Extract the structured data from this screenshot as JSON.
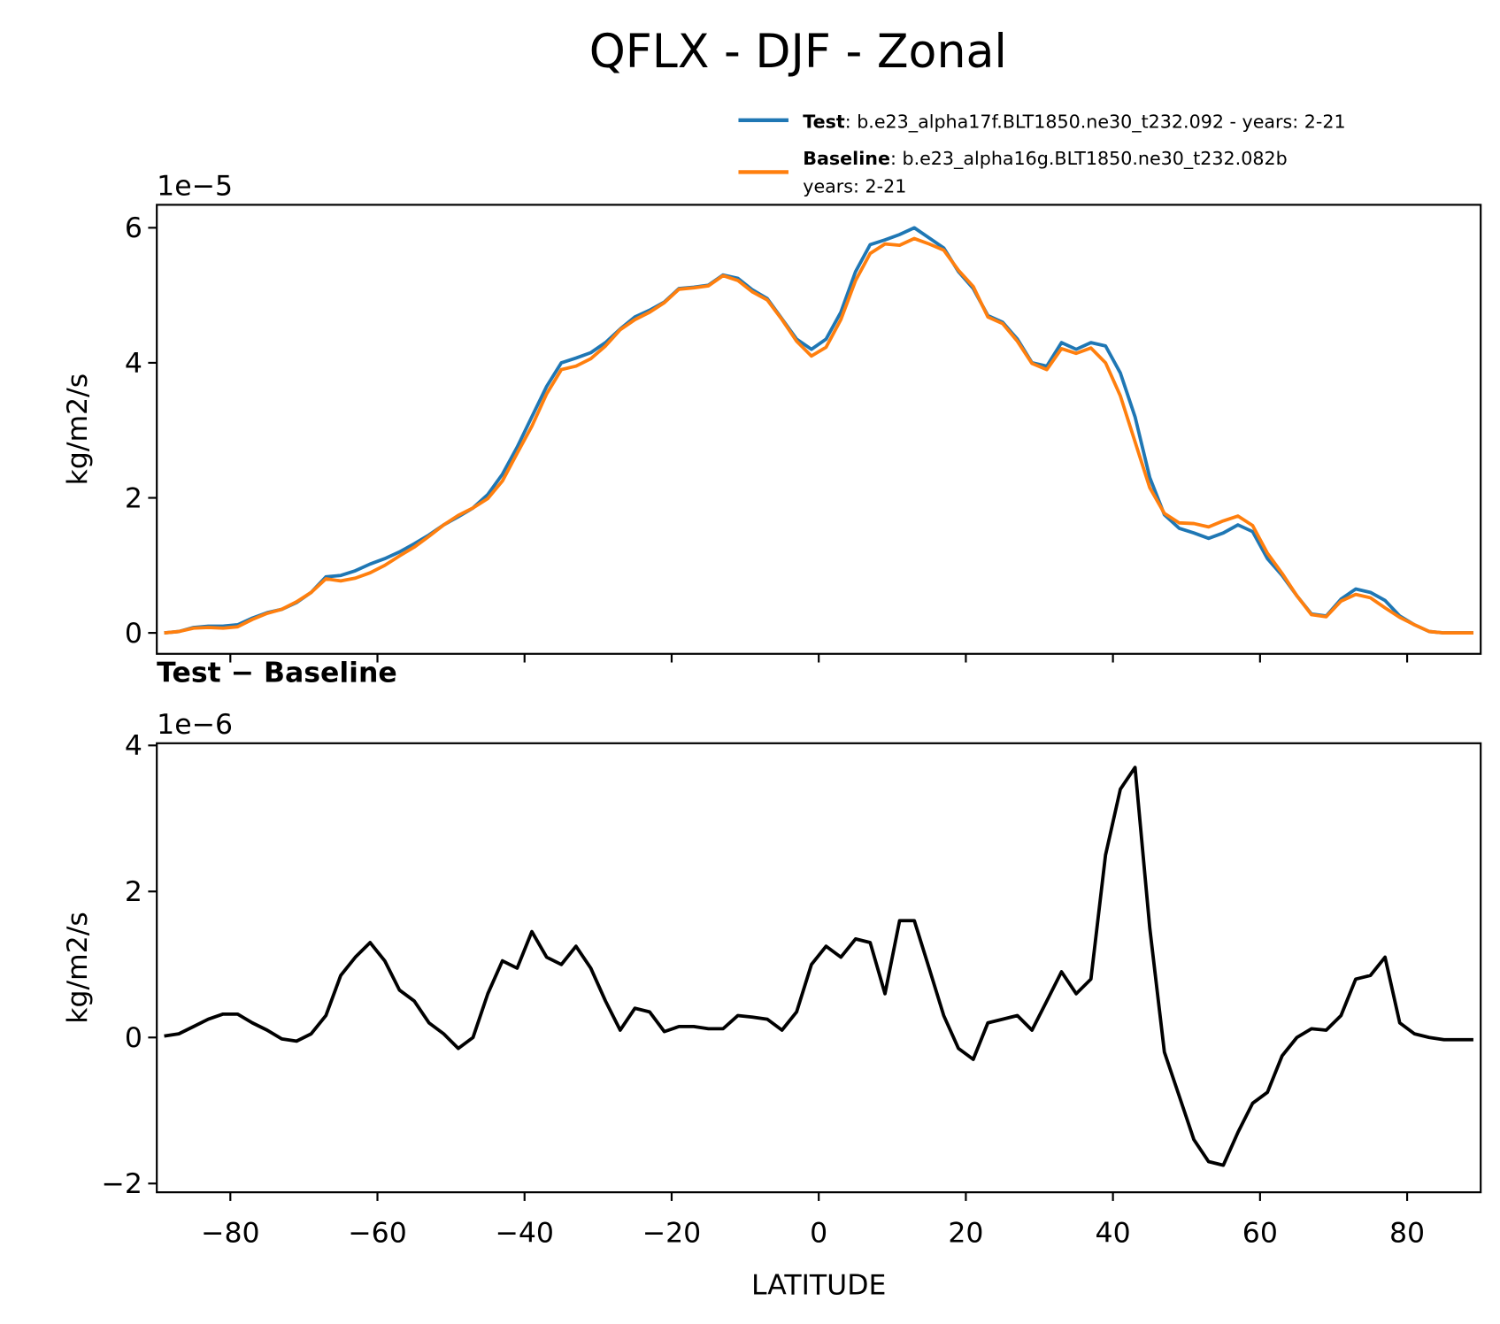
{
  "title": "QFLX - DJF - Zonal",
  "chart_data": [
    {
      "type": "line",
      "x": [
        -89,
        -87,
        -85,
        -83,
        -81,
        -79,
        -77,
        -75,
        -73,
        -71,
        -69,
        -67,
        -65,
        -63,
        -61,
        -59,
        -57,
        -55,
        -53,
        -51,
        -49,
        -47,
        -45,
        -43,
        -41,
        -39,
        -37,
        -35,
        -33,
        -31,
        -29,
        -27,
        -25,
        -23,
        -21,
        -19,
        -17,
        -15,
        -13,
        -11,
        -9,
        -7,
        -5,
        -3,
        -1,
        1,
        3,
        5,
        7,
        9,
        11,
        13,
        15,
        17,
        19,
        21,
        23,
        25,
        27,
        29,
        31,
        33,
        35,
        37,
        39,
        41,
        43,
        45,
        47,
        49,
        51,
        53,
        55,
        57,
        59,
        61,
        63,
        65,
        67,
        69,
        71,
        73,
        75,
        77,
        79,
        81,
        83,
        85,
        87,
        89
      ],
      "series": [
        {
          "name": "Test",
          "description_lines": [
            ": b.e23_alpha17f.BLT1850.ne30_t232.092 - years: 2-21"
          ],
          "color": "#1f77b4",
          "values": [
            0,
            0.02,
            0.08,
            0.1,
            0.1,
            0.12,
            0.22,
            0.3,
            0.35,
            0.45,
            0.6,
            0.83,
            0.85,
            0.92,
            1.02,
            1.1,
            1.2,
            1.32,
            1.45,
            1.6,
            1.72,
            1.85,
            2.05,
            2.35,
            2.75,
            3.2,
            3.65,
            4.0,
            4.07,
            4.15,
            4.3,
            4.5,
            4.68,
            4.78,
            4.9,
            5.1,
            5.12,
            5.15,
            5.3,
            5.25,
            5.08,
            4.95,
            4.65,
            4.35,
            4.2,
            4.35,
            4.75,
            5.35,
            5.75,
            5.82,
            5.9,
            6.0,
            5.85,
            5.7,
            5.35,
            5.1,
            4.7,
            4.6,
            4.35,
            4.0,
            3.95,
            4.3,
            4.2,
            4.3,
            4.25,
            3.85,
            3.2,
            2.3,
            1.75,
            1.55,
            1.48,
            1.4,
            1.48,
            1.6,
            1.5,
            1.1,
            0.85,
            0.55,
            0.28,
            0.25,
            0.5,
            0.65,
            0.6,
            0.48,
            0.25,
            0.12,
            0.02,
            0,
            0,
            0
          ]
        },
        {
          "name": "Baseline",
          "description_lines": [
            ": b.e23_alpha16g.BLT1850.ne30_t232.082b",
            "years: 2-21"
          ],
          "color": "#ff7f0e",
          "values": [
            0,
            0.02,
            0.07,
            0.08,
            0.07,
            0.09,
            0.2,
            0.29,
            0.35,
            0.46,
            0.6,
            0.8,
            0.77,
            0.81,
            0.89,
            1.0,
            1.14,
            1.27,
            1.43,
            1.6,
            1.74,
            1.85,
            1.99,
            2.25,
            2.66,
            3.06,
            3.54,
            3.9,
            3.95,
            4.06,
            4.25,
            4.49,
            4.64,
            4.75,
            4.89,
            5.09,
            5.11,
            5.14,
            5.29,
            5.22,
            5.05,
            4.93,
            4.64,
            4.32,
            4.1,
            4.23,
            4.64,
            5.22,
            5.62,
            5.76,
            5.74,
            5.84,
            5.76,
            5.67,
            5.37,
            5.13,
            4.68,
            4.58,
            4.32,
            3.99,
            3.9,
            4.21,
            4.14,
            4.22,
            4.0,
            3.51,
            2.83,
            2.15,
            1.77,
            1.63,
            1.62,
            1.57,
            1.66,
            1.73,
            1.59,
            1.18,
            0.88,
            0.55,
            0.27,
            0.24,
            0.47,
            0.57,
            0.52,
            0.37,
            0.23,
            0.12,
            0.02,
            0,
            0,
            0
          ]
        }
      ],
      "ylabel": "kg/m2/s",
      "offset_text": "1e−5",
      "xlim": [
        -90,
        90
      ],
      "xticks": [
        -80,
        -60,
        -40,
        -20,
        0,
        20,
        40,
        60,
        80
      ],
      "ylim": [
        -0.31,
        6.34
      ],
      "yticks": [
        0,
        2,
        4,
        6
      ]
    },
    {
      "type": "line",
      "title": "Test − Baseline",
      "x": [
        -89,
        -87,
        -85,
        -83,
        -81,
        -79,
        -77,
        -75,
        -73,
        -71,
        -69,
        -67,
        -65,
        -63,
        -61,
        -59,
        -57,
        -55,
        -53,
        -51,
        -49,
        -47,
        -45,
        -43,
        -41,
        -39,
        -37,
        -35,
        -33,
        -31,
        -29,
        -27,
        -25,
        -23,
        -21,
        -19,
        -17,
        -15,
        -13,
        -11,
        -9,
        -7,
        -5,
        -3,
        -1,
        1,
        3,
        5,
        7,
        9,
        11,
        13,
        15,
        17,
        19,
        21,
        23,
        25,
        27,
        29,
        31,
        33,
        35,
        37,
        39,
        41,
        43,
        45,
        47,
        49,
        51,
        53,
        55,
        57,
        59,
        61,
        63,
        65,
        67,
        69,
        71,
        73,
        75,
        77,
        79,
        81,
        83,
        85,
        87,
        89
      ],
      "color": "#000000",
      "values": [
        0.02,
        0.05,
        0.15,
        0.25,
        0.32,
        0.32,
        0.2,
        0.1,
        -0.02,
        -0.05,
        0.05,
        0.3,
        0.85,
        1.1,
        1.3,
        1.05,
        0.65,
        0.5,
        0.2,
        0.05,
        -0.15,
        0.0,
        0.6,
        1.05,
        0.95,
        1.45,
        1.1,
        1.0,
        1.25,
        0.95,
        0.5,
        0.1,
        0.4,
        0.35,
        0.08,
        0.15,
        0.15,
        0.12,
        0.12,
        0.3,
        0.28,
        0.25,
        0.1,
        0.35,
        1.0,
        1.25,
        1.1,
        1.35,
        1.3,
        0.6,
        1.6,
        1.6,
        0.95,
        0.3,
        -0.15,
        -0.3,
        0.2,
        0.25,
        0.3,
        0.1,
        0.5,
        0.9,
        0.6,
        0.8,
        2.5,
        3.4,
        3.7,
        1.5,
        -0.2,
        -0.8,
        -1.4,
        -1.7,
        -1.75,
        -1.3,
        -0.9,
        -0.75,
        -0.25,
        0.0,
        0.12,
        0.1,
        0.3,
        0.8,
        0.85,
        1.1,
        0.2,
        0.05,
        0.0,
        -0.03,
        -0.03,
        -0.03
      ],
      "ylabel": "kg/m2/s",
      "offset_text": "1e−6",
      "xlabel": "LATITUDE",
      "xlim": [
        -90,
        90
      ],
      "xticks": [
        {
          "value": -80,
          "label": "−80"
        },
        {
          "value": -60,
          "label": "−60"
        },
        {
          "value": -40,
          "label": "−40"
        },
        {
          "value": -20,
          "label": "−20"
        },
        0,
        20,
        40,
        60,
        80
      ],
      "ylim": [
        -2.12,
        4.03
      ],
      "yticks": [
        {
          "value": -2,
          "label": "−2"
        },
        0,
        2,
        4
      ]
    }
  ]
}
